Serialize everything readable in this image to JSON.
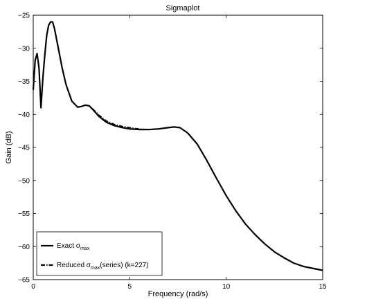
{
  "chart_data": {
    "type": "line",
    "title": "Sigmaplot",
    "xlabel": "Frequency (rad/s)",
    "ylabel": "Gain (dB)",
    "xlim": [
      0,
      15
    ],
    "ylim": [
      -65,
      -25
    ],
    "xticks": [
      0,
      5,
      10,
      15
    ],
    "yticks": [
      -65,
      -60,
      -55,
      -50,
      -45,
      -40,
      -35,
      -30,
      -25
    ],
    "grid": false,
    "legend_position": "bottom-left",
    "legend": [
      {
        "main": "Exact σ",
        "sub": "max",
        "suffix": ""
      },
      {
        "main": "Reduced σ",
        "sub": "max",
        "suffix": "(series) (k=227)"
      }
    ],
    "series": [
      {
        "style": "solid",
        "x": [
          0,
          0.1,
          0.2,
          0.3,
          0.4,
          0.5,
          0.6,
          0.7,
          0.8,
          0.9,
          1.0,
          1.1,
          1.2,
          1.3,
          1.5,
          1.7,
          2.0,
          2.3,
          2.5,
          2.7,
          2.9,
          3.1,
          3.4,
          3.8,
          4.2,
          4.6,
          5.0,
          5.5,
          6.0,
          6.5,
          7.0,
          7.3,
          7.6,
          8.0,
          8.5,
          9.0,
          9.5,
          10.0,
          10.5,
          11.0,
          11.5,
          12.0,
          12.5,
          13.0,
          13.5,
          14.0,
          14.5,
          15.0
        ],
        "y": [
          -36.3,
          -31.8,
          -30.8,
          -33.0,
          -39.0,
          -34.5,
          -31.0,
          -28.0,
          -26.5,
          -26.0,
          -26.0,
          -27.0,
          -28.5,
          -30.0,
          -33.0,
          -35.5,
          -38.0,
          -38.9,
          -38.8,
          -38.6,
          -38.7,
          -39.3,
          -40.3,
          -41.2,
          -41.7,
          -42.0,
          -42.2,
          -42.3,
          -42.3,
          -42.2,
          -42.0,
          -41.9,
          -42.0,
          -42.8,
          -44.5,
          -47.0,
          -49.7,
          -52.3,
          -54.6,
          -56.6,
          -58.2,
          -59.6,
          -60.8,
          -61.7,
          -62.5,
          -63.0,
          -63.3,
          -63.6
        ]
      },
      {
        "style": "dashdot",
        "x": [
          0,
          0.1,
          0.2,
          0.3,
          0.4,
          0.5,
          0.6,
          0.7,
          0.8,
          0.9,
          1.0,
          1.1,
          1.2,
          1.3,
          1.5,
          1.7,
          2.0,
          2.3,
          2.5,
          2.7,
          2.9,
          3.1,
          3.4,
          3.8,
          4.2,
          4.6,
          5.0,
          5.5,
          6.0,
          6.5,
          7.0,
          7.3,
          7.6,
          8.0,
          8.5,
          9.0,
          9.5,
          10.0,
          10.5,
          11.0,
          11.5,
          12.0,
          12.5,
          13.0,
          13.5,
          14.0,
          14.5,
          15.0
        ],
        "y": [
          -36.3,
          -31.8,
          -30.8,
          -33.0,
          -39.0,
          -34.5,
          -31.0,
          -28.0,
          -26.5,
          -26.0,
          -26.0,
          -27.0,
          -28.5,
          -30.0,
          -33.0,
          -35.5,
          -38.0,
          -38.9,
          -38.8,
          -38.6,
          -38.7,
          -39.2,
          -40.1,
          -41.0,
          -41.5,
          -41.8,
          -42.0,
          -42.2,
          -42.3,
          -42.2,
          -42.0,
          -41.9,
          -42.0,
          -42.8,
          -44.5,
          -47.0,
          -49.7,
          -52.3,
          -54.6,
          -56.6,
          -58.2,
          -59.6,
          -60.8,
          -61.7,
          -62.5,
          -63.0,
          -63.3,
          -63.6
        ]
      }
    ]
  }
}
